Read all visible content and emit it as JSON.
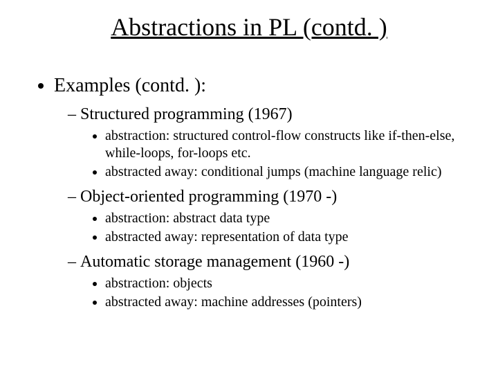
{
  "title": "Abstractions in PL (contd. )",
  "header": "Examples (contd. ):",
  "sections": [
    {
      "heading": "Structured programming (1967)",
      "points": [
        "abstraction: structured control-flow constructs like if-then-else, while-loops, for-loops etc.",
        "abstracted away: conditional jumps (machine language relic)"
      ]
    },
    {
      "heading": "Object-oriented programming (1970 -)",
      "points": [
        "abstraction: abstract data type",
        "abstracted away: representation of data type"
      ]
    },
    {
      "heading": "Automatic storage management (1960 -)",
      "points": [
        "abstraction: objects",
        "abstracted away: machine addresses (pointers)"
      ]
    }
  ],
  "style": {
    "background_color": "#ffffff",
    "text_color": "#000000",
    "font_family": "Times New Roman",
    "title_fontsize": 36,
    "level1_fontsize": 28,
    "level2_fontsize": 24,
    "level3_fontsize": 20
  }
}
